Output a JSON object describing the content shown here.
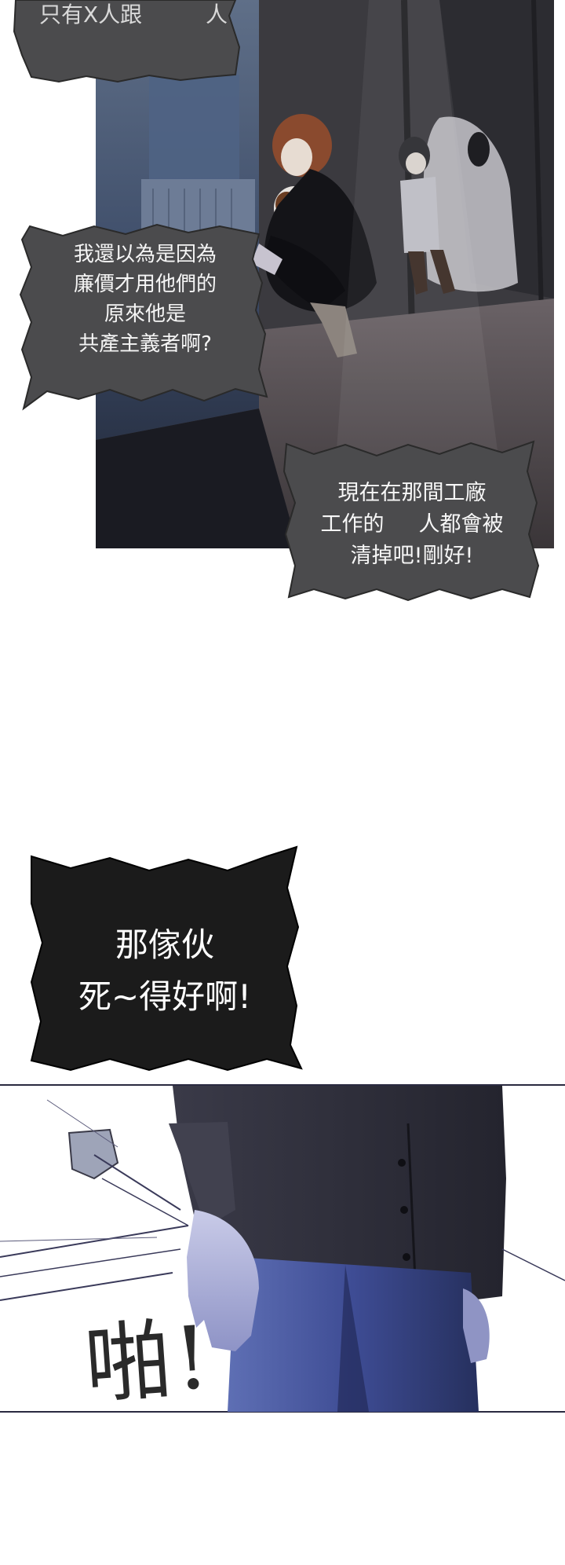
{
  "panels": {
    "top_bubble": {
      "lines": [
        "只有X人跟",
        "人"
      ]
    },
    "left_bubble": {
      "lines": [
        "我還以為是因為",
        "廉價才用他們的",
        "原來他是",
        "共產主義者啊?"
      ]
    },
    "right_bubble": {
      "lines": [
        "現在在那間工廠",
        "工作的",
        "人都會被",
        "清掉吧!剛好!"
      ]
    },
    "black_bubble": {
      "lines": [
        "那傢伙",
        "死~得好啊!"
      ]
    },
    "sound_effect": {
      "text": "啪!"
    }
  },
  "colors": {
    "bubble_grey": "#4a4a4c",
    "bubble_black": "#1b1b1b",
    "night_blue": "#2e3c58",
    "coat_dark": "#2a2c38",
    "jeans_blue": "#3c4a8a"
  }
}
